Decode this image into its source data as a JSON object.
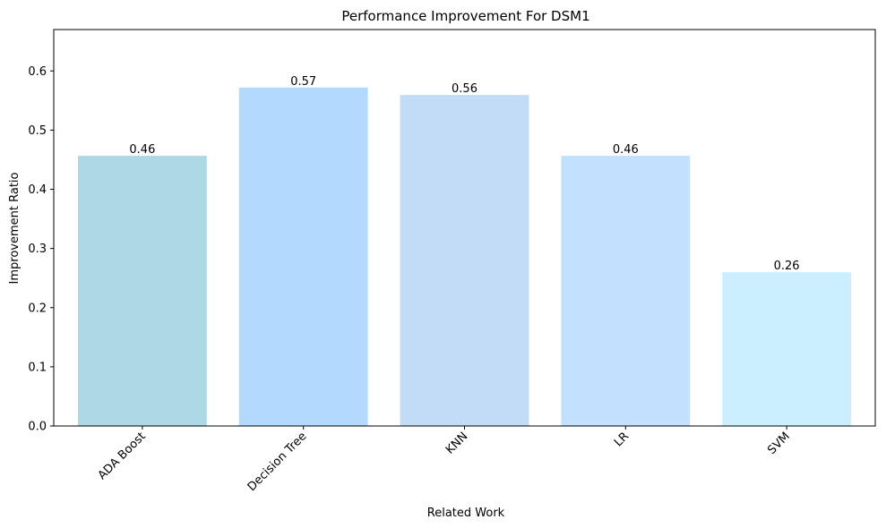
{
  "chart_data": {
    "type": "bar",
    "title": "Performance Improvement For DSM1",
    "xlabel": "Related Work",
    "ylabel": "Improvement Ratio",
    "categories": [
      "ADA Boost",
      "Decision Tree",
      "KNN",
      "LR",
      "SVM"
    ],
    "values": [
      0.4566,
      0.5719,
      0.5594,
      0.4566,
      0.2599
    ],
    "data_labels": [
      "0.46",
      "0.57",
      "0.56",
      "0.46",
      "0.26"
    ],
    "bar_colors": [
      "#add8e6",
      "#b3d9ff",
      "#c2dcf7",
      "#c2e0ff",
      "#ccefff"
    ],
    "ylim": [
      0,
      0.67
    ],
    "yticks": [
      0.0,
      0.1,
      0.2,
      0.3,
      0.4,
      0.5,
      0.6
    ],
    "ytick_labels": [
      "0.0",
      "0.1",
      "0.2",
      "0.3",
      "0.4",
      "0.5",
      "0.6"
    ],
    "grid": false,
    "legend": "none"
  }
}
